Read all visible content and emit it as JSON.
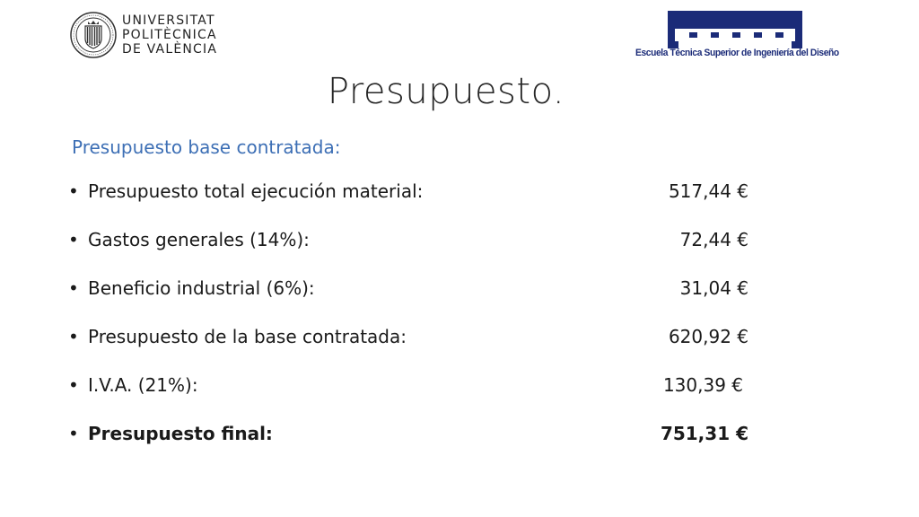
{
  "header": {
    "upv_logo": {
      "line1": "UNIVERSITAT",
      "line2": "POLITÈCNICA",
      "line3": "DE VALÈNCIA",
      "icon": "university-seal-icon"
    },
    "etsid_logo": {
      "name": "Escuela Técnica Superior de Ingeniería del Diseño",
      "icon": "etsid-building-icon",
      "color": "#1b2b78"
    }
  },
  "slide": {
    "title": "Presupuesto.",
    "subtitle": "Presupuesto base contratada:",
    "subtitle_color": "#3d6fb5",
    "items": [
      {
        "bullet": "•",
        "label": "Presupuesto total ejecución material:",
        "value": "517,44 €"
      },
      {
        "bullet": "•",
        "label": "Gastos generales (14%):",
        "value": "72,44 €"
      },
      {
        "bullet": "•",
        "label": "Beneficio industrial (6%):",
        "value": "31,04 €"
      },
      {
        "bullet": "•",
        "label": "Presupuesto de la base contratada:",
        "value": "620,92 €"
      },
      {
        "bullet": "•",
        "label": "I.V.A. (21%):",
        "value": "130,39 €"
      },
      {
        "bullet": "•",
        "label": "Presupuesto final:",
        "value": "751,31 €"
      }
    ]
  }
}
